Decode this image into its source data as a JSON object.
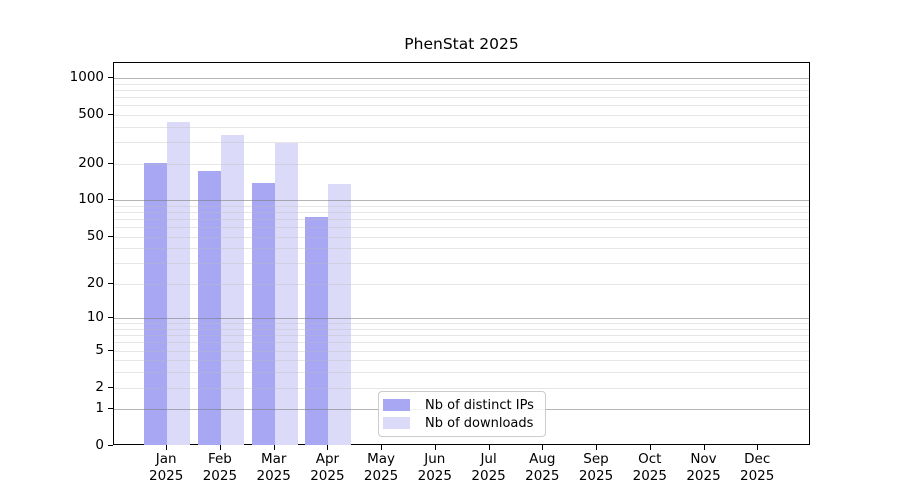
{
  "chart_data": {
    "type": "bar",
    "title": "PhenStat 2025",
    "categories": [
      "Jan",
      "Feb",
      "Mar",
      "Apr",
      "May",
      "Jun",
      "Jul",
      "Aug",
      "Sep",
      "Oct",
      "Nov",
      "Dec"
    ],
    "category_year": "2025",
    "series": [
      {
        "name": "Nb of distinct IPs",
        "color": "#a7a7f4",
        "values": [
          201,
          174,
          139,
          73,
          null,
          null,
          null,
          null,
          null,
          null,
          null,
          null
        ]
      },
      {
        "name": "Nb of downloads",
        "color": "#dbdbf9",
        "values": [
          437,
          340,
          295,
          135,
          null,
          null,
          null,
          null,
          null,
          null,
          null,
          null
        ]
      }
    ],
    "y_axis": {
      "scale": "log10(value+1)",
      "tick_labels": [
        "0",
        "1",
        "2",
        "5",
        "10",
        "20",
        "50",
        "100",
        "200",
        "500",
        "1000"
      ],
      "tick_values": [
        0,
        1,
        2,
        5,
        10,
        20,
        50,
        100,
        200,
        500,
        1000
      ],
      "major_grid_values": [
        1,
        10,
        100,
        1000
      ],
      "minor_grid_values": [
        2,
        3,
        4,
        5,
        6,
        7,
        8,
        9,
        20,
        30,
        40,
        50,
        60,
        70,
        80,
        90,
        200,
        300,
        400,
        500,
        600,
        700,
        800,
        900
      ],
      "top_value": 1325
    },
    "x_axis": {
      "label_format": "month over year"
    },
    "legend": {
      "position": "bottom-center-inside",
      "items": [
        "Nb of distinct IPs",
        "Nb of downloads"
      ]
    },
    "grid": "horizontal major and minor, drawn over bars",
    "colors": {
      "background": "#ffffff",
      "axis": "#000000",
      "major_grid": "#bdbdbd",
      "minor_grid": "#e9e9e9",
      "series_1": "#a7a7f4",
      "series_2": "#dbdbf9"
    }
  }
}
